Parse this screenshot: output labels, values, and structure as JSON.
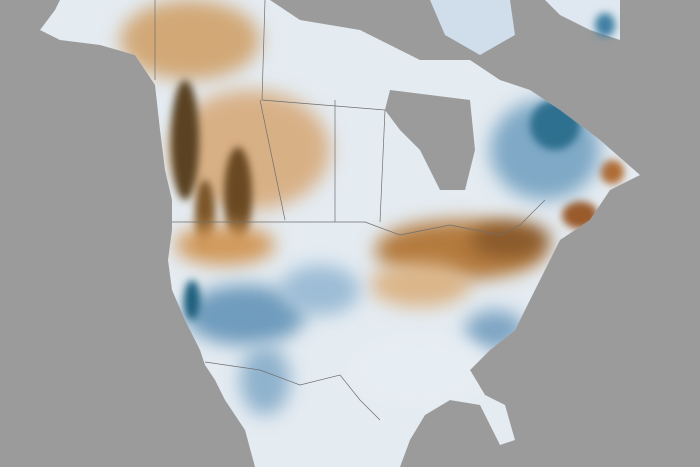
{
  "map": {
    "region": "North America",
    "colors": {
      "ocean": "#9b9b9b",
      "land_neutral": "#e8eef3",
      "deficit_light": "#d9b48a",
      "deficit_strong": "#8a5a2a",
      "deficit_dark": "#5a4322",
      "surplus_light": "#b9d0e3",
      "surplus_strong": "#3f7fa3",
      "surplus_dark": "#1f5f7d",
      "borders": "#6f6f6f"
    }
  }
}
